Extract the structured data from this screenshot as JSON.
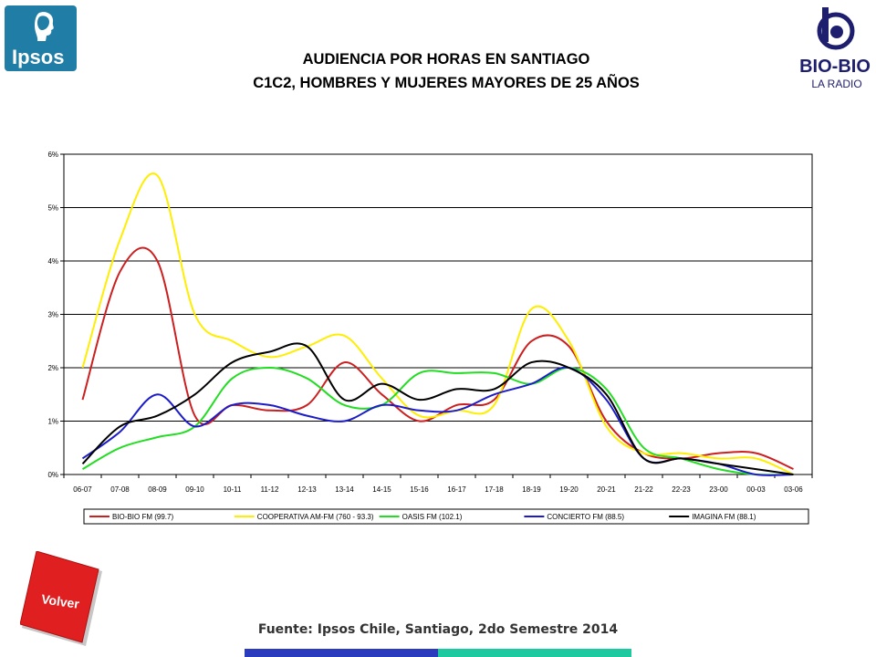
{
  "header": {
    "title_line1": "AUDIENCIA POR HORAS EN SANTIAGO",
    "title_line2": "C1C2, HOMBRES Y MUJERES MAYORES DE 25 AÑOS",
    "left_logo_text": "Ipsos",
    "right_logo_text": "BIO-BIO",
    "right_logo_sub": "LA RADIO"
  },
  "footer": {
    "source": "Fuente: Ipsos Chile, Santiago, 2do Semestre 2014",
    "back_button": "Volver"
  },
  "colors": {
    "ipsos_blue": "#1f7da6",
    "volver_red": "#e02020",
    "bar_blue": "#2b3bbd",
    "bar_teal": "#1ec9a0"
  },
  "chart_data": {
    "type": "line",
    "categories": [
      "06-07",
      "07-08",
      "08-09",
      "09-10",
      "10-11",
      "11-12",
      "12-13",
      "13-14",
      "14-15",
      "15-16",
      "16-17",
      "17-18",
      "18-19",
      "19-20",
      "20-21",
      "21-22",
      "22-23",
      "23-00",
      "00-03",
      "03-06"
    ],
    "ylim": [
      0,
      6
    ],
    "yticks": [
      "0%",
      "1%",
      "2%",
      "3%",
      "4%",
      "5%",
      "6%"
    ],
    "grid": true,
    "legend_position": "bottom",
    "series": [
      {
        "name": "BIO-BIO FM (99.7)",
        "color": "#cc1f1f",
        "values": [
          1.4,
          3.8,
          4.0,
          1.1,
          1.3,
          1.2,
          1.3,
          2.1,
          1.5,
          1.0,
          1.3,
          1.4,
          2.5,
          2.4,
          1.0,
          0.4,
          0.3,
          0.4,
          0.4,
          0.1
        ]
      },
      {
        "name": "COOPERATIVA AM-FM (760 - 93.3)",
        "color": "#ffee00",
        "values": [
          2.0,
          4.4,
          5.6,
          3.0,
          2.5,
          2.2,
          2.4,
          2.6,
          1.8,
          1.1,
          1.2,
          1.3,
          3.1,
          2.5,
          0.9,
          0.4,
          0.4,
          0.3,
          0.3,
          0.0
        ]
      },
      {
        "name": "OASIS FM (102.1)",
        "color": "#22dd22",
        "values": [
          0.1,
          0.5,
          0.7,
          0.9,
          1.8,
          2.0,
          1.8,
          1.3,
          1.3,
          1.9,
          1.9,
          1.9,
          1.7,
          2.0,
          1.6,
          0.5,
          0.3,
          0.1,
          0.0,
          0.0
        ]
      },
      {
        "name": "CONCIERTO FM (88.5)",
        "color": "#1c1cc8",
        "values": [
          0.3,
          0.8,
          1.5,
          0.9,
          1.3,
          1.3,
          1.1,
          1.0,
          1.3,
          1.2,
          1.2,
          1.5,
          1.7,
          2.0,
          1.4,
          0.3,
          0.3,
          0.2,
          0.0,
          0.0
        ]
      },
      {
        "name": "IMAGINA FM (88.1)",
        "color": "#000000",
        "values": [
          0.2,
          0.9,
          1.1,
          1.5,
          2.1,
          2.3,
          2.4,
          1.4,
          1.7,
          1.4,
          1.6,
          1.6,
          2.1,
          2.0,
          1.5,
          0.3,
          0.3,
          0.2,
          0.1,
          0.0
        ]
      }
    ]
  }
}
